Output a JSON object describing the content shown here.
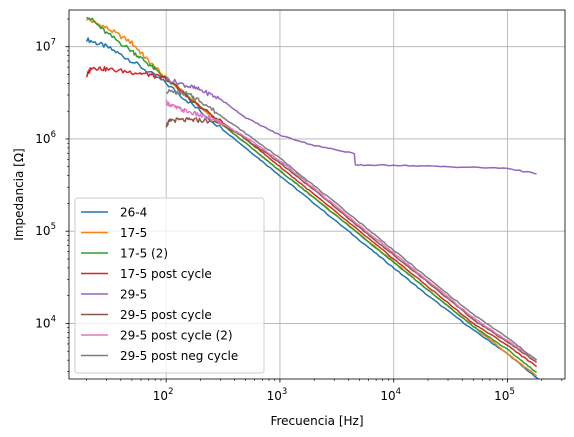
{
  "chart_data": {
    "type": "line",
    "xlabel": "Frecuencia [Hz]",
    "ylabel": "Impedancia [Ω]",
    "xscale": "log",
    "yscale": "log",
    "xlim": [
      14,
      320000
    ],
    "ylim": [
      2500,
      25000000
    ],
    "grid": true,
    "legend_position": "lower-left",
    "x_ticks": [
      {
        "value": 100,
        "base": "10",
        "exp": "2"
      },
      {
        "value": 1000,
        "base": "10",
        "exp": "3"
      },
      {
        "value": 10000,
        "base": "10",
        "exp": "4"
      },
      {
        "value": 100000,
        "base": "10",
        "exp": "5"
      }
    ],
    "y_ticks": [
      {
        "value": 10000,
        "base": "10",
        "exp": "4"
      },
      {
        "value": 100000,
        "base": "10",
        "exp": "5"
      },
      {
        "value": 1000000,
        "base": "10",
        "exp": "6"
      },
      {
        "value": 10000000,
        "base": "10",
        "exp": "7"
      }
    ],
    "series": [
      {
        "name": "26-4",
        "color": "#1f77b4",
        "points": [
          [
            20,
            12000000
          ],
          [
            30,
            10000000
          ],
          [
            50,
            7000000
          ],
          [
            100,
            4000000
          ],
          [
            200,
            2000000
          ],
          [
            500,
            800000
          ],
          [
            1000,
            400000
          ],
          [
            2000,
            200000
          ],
          [
            5000,
            80000
          ],
          [
            10000,
            40000
          ],
          [
            20000,
            20000
          ],
          [
            50000,
            8500
          ],
          [
            100000,
            4700
          ],
          [
            200000,
            2300
          ]
        ]
      },
      {
        "name": "17-5",
        "color": "#ff7f0e",
        "points": [
          [
            20,
            20000000
          ],
          [
            30,
            16000000
          ],
          [
            50,
            11000000
          ],
          [
            70,
            7000000
          ],
          [
            100,
            4500000
          ],
          [
            200,
            2200000
          ],
          [
            500,
            900000
          ],
          [
            1000,
            450000
          ],
          [
            2000,
            230000
          ],
          [
            5000,
            93000
          ],
          [
            10000,
            47000
          ],
          [
            20000,
            23000
          ],
          [
            50000,
            9300
          ],
          [
            100000,
            4700
          ],
          [
            180000,
            2700
          ]
        ]
      },
      {
        "name": "17-5 (2)",
        "color": "#2ca02c",
        "points": [
          [
            20,
            22000000
          ],
          [
            30,
            14000000
          ],
          [
            50,
            9000000
          ],
          [
            70,
            6500000
          ],
          [
            100,
            4500000
          ],
          [
            200,
            2200000
          ],
          [
            500,
            900000
          ],
          [
            1000,
            450000
          ],
          [
            2000,
            230000
          ],
          [
            5000,
            92000
          ],
          [
            10000,
            46000
          ],
          [
            20000,
            23000
          ],
          [
            50000,
            9300
          ],
          [
            100000,
            5200
          ],
          [
            180000,
            2950
          ]
        ]
      },
      {
        "name": "17-5 post cycle",
        "color": "#d62728",
        "points": [
          [
            20,
            4800000
          ],
          [
            22,
            6000000
          ],
          [
            30,
            5700000
          ],
          [
            50,
            5300000
          ],
          [
            70,
            5000000
          ],
          [
            100,
            4500000
          ],
          [
            200,
            2200000
          ],
          [
            500,
            1000000
          ],
          [
            1000,
            500000
          ],
          [
            2000,
            250000
          ],
          [
            5000,
            100000
          ],
          [
            10000,
            50000
          ],
          [
            20000,
            25000
          ],
          [
            50000,
            10000
          ],
          [
            100000,
            5800
          ],
          [
            180000,
            3400
          ]
        ]
      },
      {
        "name": "29-5",
        "color": "#9467bd",
        "points": [
          [
            100,
            4500000
          ],
          [
            150,
            3800000
          ],
          [
            200,
            3400000
          ],
          [
            300,
            2700000
          ],
          [
            500,
            1700000
          ],
          [
            1000,
            1100000
          ],
          [
            2000,
            850000
          ],
          [
            4500,
            700000
          ],
          [
            4600,
            520000
          ],
          [
            10000,
            520000
          ],
          [
            30000,
            500000
          ],
          [
            100000,
            480000
          ],
          [
            180000,
            420000
          ]
        ]
      },
      {
        "name": "29-5 post cycle",
        "color": "#8c564b",
        "points": [
          [
            100,
            1400000
          ],
          [
            110,
            1600000
          ],
          [
            150,
            1600000
          ],
          [
            200,
            1600000
          ],
          [
            300,
            1500000
          ],
          [
            500,
            1000000
          ],
          [
            1000,
            550000
          ],
          [
            2000,
            280000
          ],
          [
            5000,
            110000
          ],
          [
            10000,
            55000
          ],
          [
            20000,
            28000
          ],
          [
            50000,
            11000
          ],
          [
            100000,
            6300
          ],
          [
            180000,
            3800
          ]
        ]
      },
      {
        "name": "29-5 post cycle (2)",
        "color": "#e377c2",
        "points": [
          [
            100,
            2500000
          ],
          [
            120,
            2200000
          ],
          [
            150,
            2000000
          ],
          [
            200,
            1800000
          ],
          [
            300,
            1500000
          ],
          [
            500,
            1050000
          ],
          [
            1000,
            580000
          ],
          [
            2000,
            290000
          ],
          [
            5000,
            115000
          ],
          [
            10000,
            58000
          ],
          [
            20000,
            29000
          ],
          [
            50000,
            11500
          ],
          [
            100000,
            6500
          ],
          [
            180000,
            4000
          ]
        ]
      },
      {
        "name": "29-5 post neg cycle",
        "color": "#7f7f7f",
        "points": [
          [
            100,
            3300000
          ],
          [
            150,
            3100000
          ],
          [
            200,
            2600000
          ],
          [
            300,
            1800000
          ],
          [
            500,
            1150000
          ],
          [
            1000,
            620000
          ],
          [
            2000,
            310000
          ],
          [
            5000,
            125000
          ],
          [
            10000,
            62000
          ],
          [
            20000,
            31000
          ],
          [
            50000,
            12500
          ],
          [
            100000,
            7000
          ],
          [
            180000,
            4000
          ]
        ]
      }
    ]
  }
}
